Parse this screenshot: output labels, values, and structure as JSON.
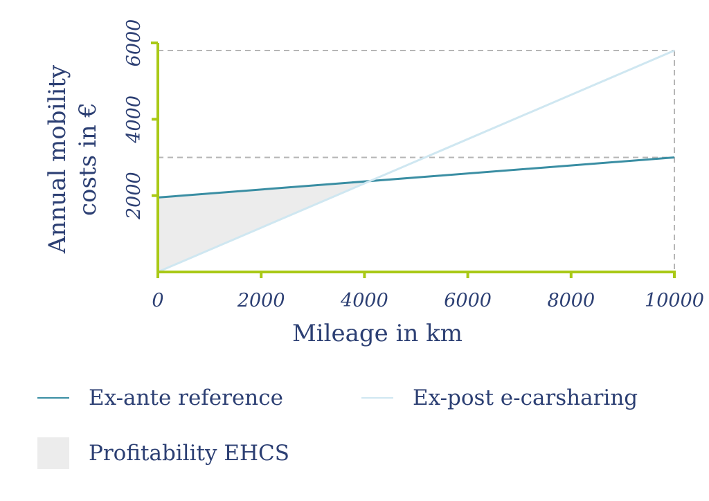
{
  "chart_data": {
    "type": "line",
    "title": "",
    "xlabel": "Mileage in km",
    "ylabel_lines": [
      "Annual mobility",
      "costs in €"
    ],
    "xlim": [
      0,
      10000
    ],
    "ylim": [
      0,
      6000
    ],
    "x_ticks": [
      0,
      2000,
      4000,
      6000,
      8000,
      10000
    ],
    "x_tick_labels": [
      "0",
      "2000",
      "4000",
      "6000",
      "8000",
      "10000"
    ],
    "y_ticks": [
      2000,
      4000,
      6000
    ],
    "y_tick_labels": [
      "2000",
      "4000",
      "6000"
    ],
    "reference_lines_y": [
      3000,
      5800
    ],
    "reference_line_x": 10000,
    "grid": false,
    "legend_position": "bottom",
    "series": [
      {
        "name": "Ex-ante reference",
        "color": "#3a8ea3",
        "x": [
          0,
          10000
        ],
        "y": [
          1950,
          3000
        ]
      },
      {
        "name": "Ex-post e-carsharing",
        "color": "#cfe7f1",
        "x": [
          0,
          10000
        ],
        "y": [
          0,
          5800
        ]
      }
    ],
    "shaded_area": {
      "name": "Profitability EHCS",
      "color": "#ececec",
      "between": [
        "Ex-ante reference",
        "Ex-post e-carsharing"
      ],
      "x_range": [
        0,
        4150
      ]
    },
    "axis_color": "#a9c916",
    "dash_color": "#b5b5b5"
  }
}
